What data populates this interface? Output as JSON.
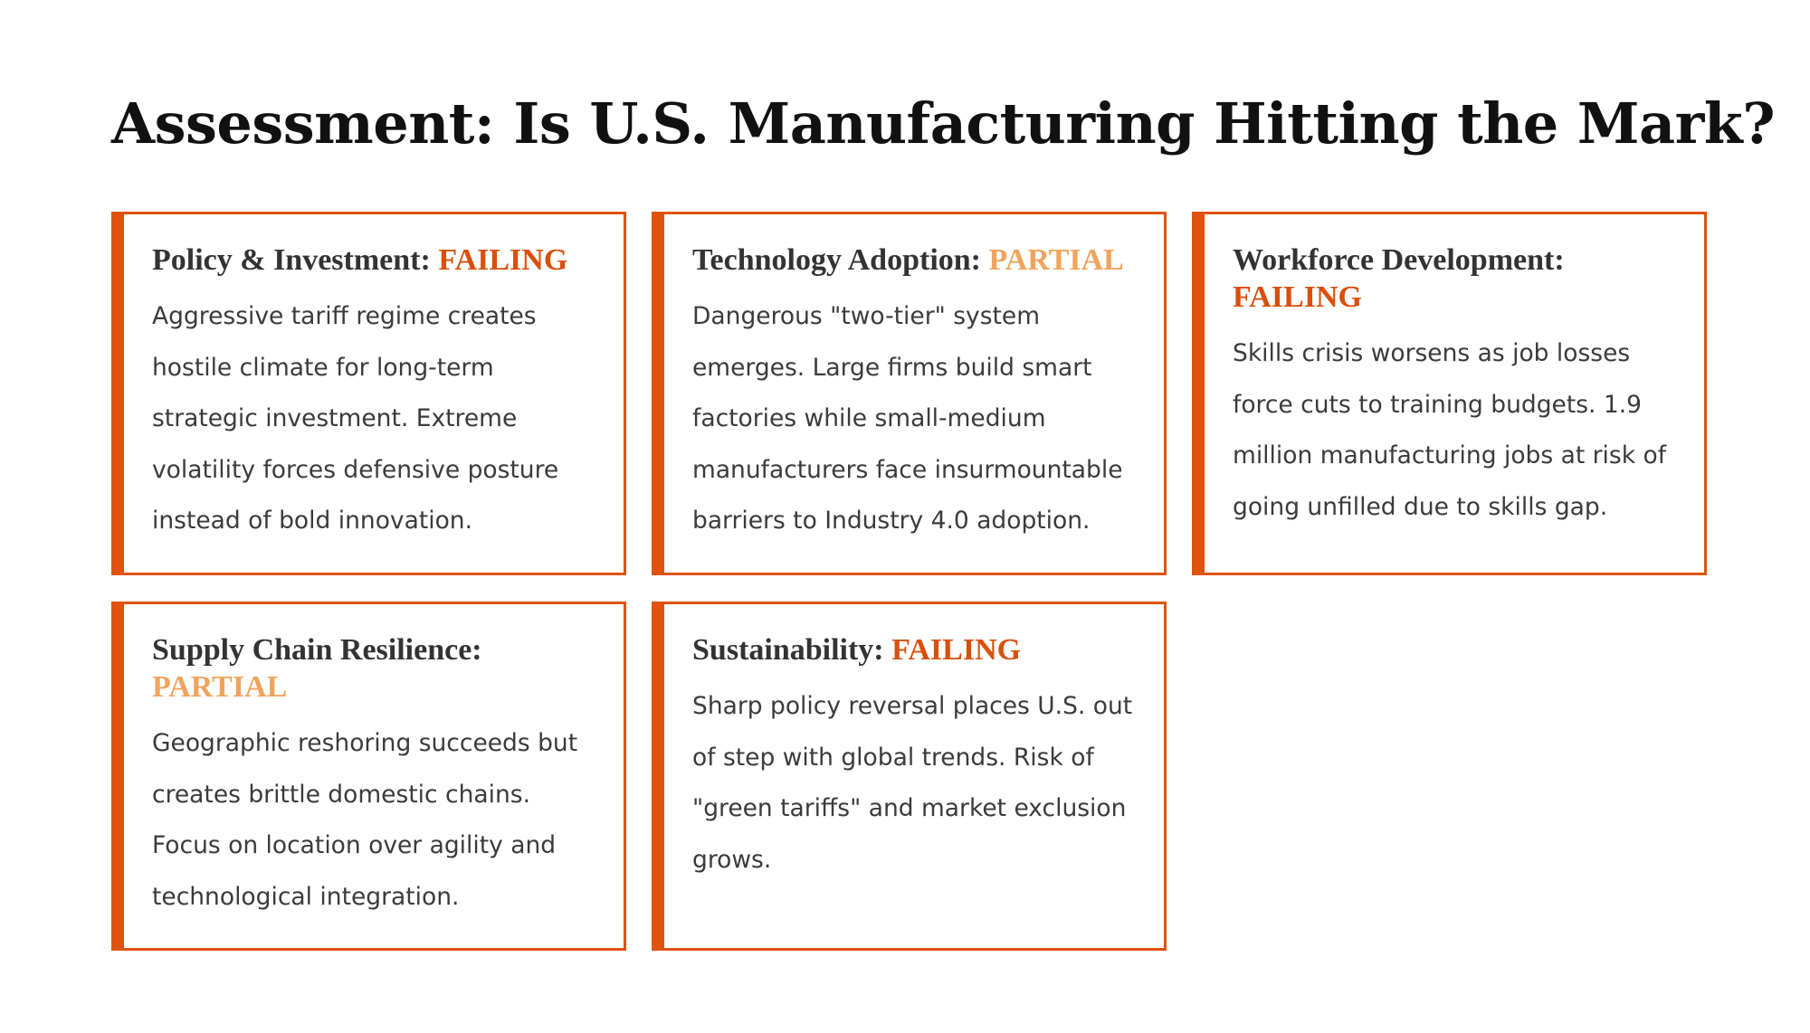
{
  "title": "Assessment: Is U.S. Manufacturing Hitting the Mark?",
  "colors": {
    "accent": "#e0530e",
    "failing": "#d94f0c",
    "partial": "#f0a35c",
    "heading_text": "#333333",
    "body_text": "#3b3b3b"
  },
  "cards": [
    {
      "label": "Policy & Investment:",
      "status": "FAILING",
      "body": "Aggressive tariff regime creates hostile climate for long-term strategic investment. Extreme volatility forces defensive posture instead of bold innovation."
    },
    {
      "label": "Technology Adoption:",
      "status": "PARTIAL",
      "body": "Dangerous \"two-tier\" system emerges. Large firms build smart factories while small-medium manufacturers face insurmountable barriers to Industry 4.0 adoption."
    },
    {
      "label": "Workforce Development:",
      "status": "FAILING",
      "body": "Skills crisis worsens as job losses force cuts to training budgets. 1.9 million manufacturing jobs at risk of going unfilled due to skills gap."
    },
    {
      "label": "Supply Chain Resilience:",
      "status": "PARTIAL",
      "body": "Geographic reshoring succeeds but creates brittle domestic chains. Focus on location over agility and technological integration."
    },
    {
      "label": "Sustainability:",
      "status": "FAILING",
      "body": "Sharp policy reversal places U.S. out of step with global trends. Risk of \"green tariffs\" and market exclusion grows."
    }
  ]
}
